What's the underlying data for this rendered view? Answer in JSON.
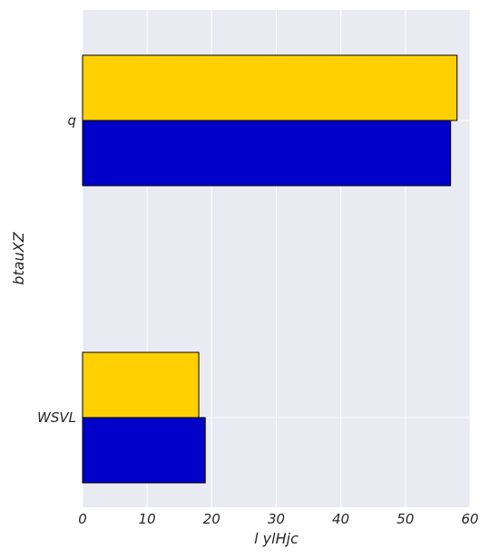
{
  "chart_data": {
    "type": "bar",
    "orientation": "horizontal",
    "categories": [
      "WSVL",
      "q"
    ],
    "series": [
      {
        "values": [
          19,
          57
        ],
        "color": "#0000C8"
      },
      {
        "values": [
          18,
          58
        ],
        "color": "#FFD000"
      }
    ],
    "xlabel": "l ylHjc",
    "ylabel": "btauXZ",
    "xlim": [
      0,
      60
    ],
    "xticks": [
      0,
      10,
      20,
      30,
      40,
      50,
      60
    ],
    "grid": true,
    "background": "#EAEAF2",
    "edge_color": "#000000"
  }
}
